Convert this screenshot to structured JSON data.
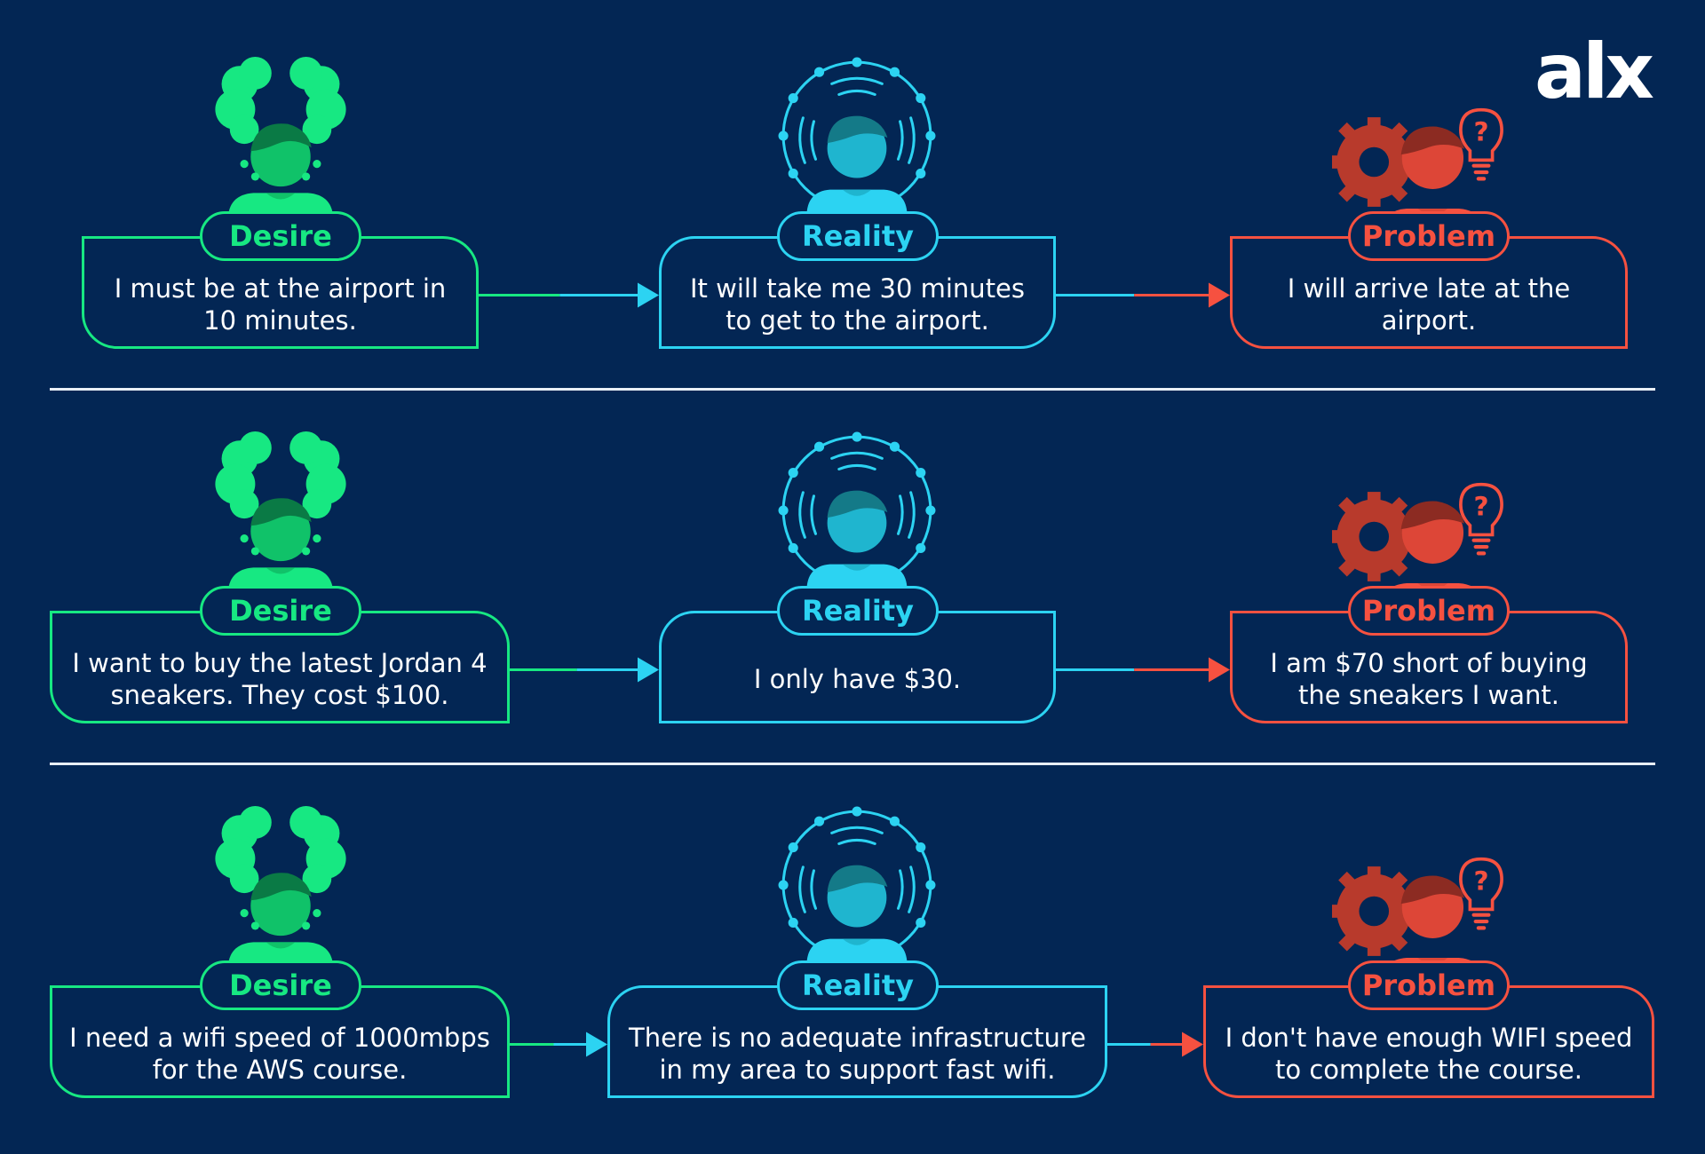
{
  "logo": "alx",
  "colors": {
    "background": "#032654",
    "desire": "#17e882",
    "reality": "#2cd3f2",
    "problem": "#f65140",
    "divider": "#e9eef5"
  },
  "labels": {
    "desire": "Desire",
    "reality": "Reality",
    "problem": "Problem"
  },
  "icons": {
    "desire": "person-with-curly-hair-icon",
    "reality": "person-in-signal-circle-icon",
    "problem": "person-gear-lightbulb-question-icon"
  },
  "rows": [
    {
      "desire": "I must be at the airport in 10 minutes.",
      "reality": "It will take me 30 minutes to get to the airport.",
      "problem": "I will arrive late at the airport."
    },
    {
      "desire": "I want to buy the latest Jordan 4 sneakers. They cost $100.",
      "reality": "I only have $30.",
      "problem": "I am $70 short of buying the sneakers I want."
    },
    {
      "desire": "I need a wifi speed of 1000mbps for the AWS course.",
      "reality": "There is no adequate infrastructure in my area to support fast wifi.",
      "problem": "I don't have enough WIFI speed to complete the course."
    }
  ]
}
